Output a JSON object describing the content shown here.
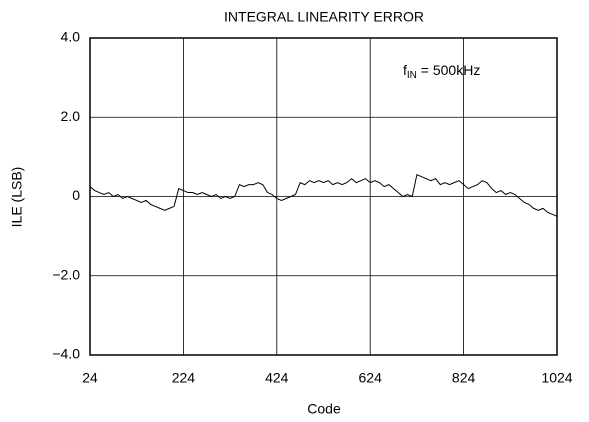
{
  "chart_data": {
    "type": "line",
    "title": "INTEGRAL LINEARITY ERROR",
    "x_label": "Code",
    "y_label": "ILE (LSB)",
    "annotation": {
      "base": "f",
      "sub": "IN",
      "rest": " = 500kHz"
    },
    "grid": true,
    "color": "#000000",
    "xlim": [
      24,
      1024
    ],
    "xticks": [
      24,
      224,
      424,
      624,
      824,
      1024
    ],
    "ylim": [
      -4,
      4
    ],
    "yticks": [
      {
        "value": 4,
        "label": "4.0"
      },
      {
        "value": 2,
        "label": "2.0"
      },
      0,
      {
        "value": -2,
        "label": "−2.0"
      },
      {
        "value": -4,
        "label": "−4.0"
      }
    ],
    "x": [
      24,
      34,
      44,
      54,
      64,
      74,
      84,
      94,
      104,
      114,
      124,
      134,
      144,
      154,
      164,
      174,
      184,
      194,
      204,
      214,
      224,
      234,
      244,
      254,
      264,
      274,
      284,
      294,
      304,
      314,
      324,
      334,
      344,
      354,
      364,
      374,
      384,
      394,
      404,
      414,
      424,
      434,
      444,
      454,
      464,
      474,
      484,
      494,
      504,
      514,
      524,
      534,
      544,
      554,
      564,
      574,
      584,
      594,
      604,
      614,
      624,
      634,
      644,
      654,
      664,
      674,
      684,
      694,
      704,
      714,
      724,
      734,
      744,
      754,
      764,
      774,
      784,
      794,
      804,
      814,
      824,
      834,
      844,
      854,
      864,
      874,
      884,
      894,
      904,
      914,
      924,
      934,
      944,
      954,
      964,
      974,
      984,
      994,
      1004,
      1014,
      1024
    ],
    "values": [
      0.25,
      0.15,
      0.1,
      0.05,
      0.1,
      0.0,
      0.05,
      -0.05,
      0.0,
      -0.05,
      -0.1,
      -0.15,
      -0.1,
      -0.2,
      -0.25,
      -0.3,
      -0.35,
      -0.3,
      -0.25,
      0.2,
      0.15,
      0.1,
      0.1,
      0.05,
      0.1,
      0.05,
      0.0,
      0.05,
      -0.05,
      0.0,
      -0.05,
      0.0,
      0.3,
      0.25,
      0.3,
      0.3,
      0.35,
      0.3,
      0.1,
      0.05,
      -0.05,
      -0.1,
      -0.05,
      0.0,
      0.05,
      0.35,
      0.3,
      0.4,
      0.35,
      0.4,
      0.35,
      0.4,
      0.3,
      0.35,
      0.3,
      0.35,
      0.45,
      0.35,
      0.4,
      0.45,
      0.35,
      0.4,
      0.35,
      0.25,
      0.3,
      0.2,
      0.1,
      0.0,
      0.05,
      0.0,
      0.55,
      0.5,
      0.45,
      0.4,
      0.45,
      0.3,
      0.35,
      0.3,
      0.35,
      0.4,
      0.3,
      0.2,
      0.25,
      0.3,
      0.4,
      0.35,
      0.2,
      0.1,
      0.15,
      0.05,
      0.1,
      0.05,
      -0.05,
      -0.15,
      -0.2,
      -0.3,
      -0.35,
      -0.3,
      -0.4,
      -0.45,
      -0.5
    ]
  }
}
